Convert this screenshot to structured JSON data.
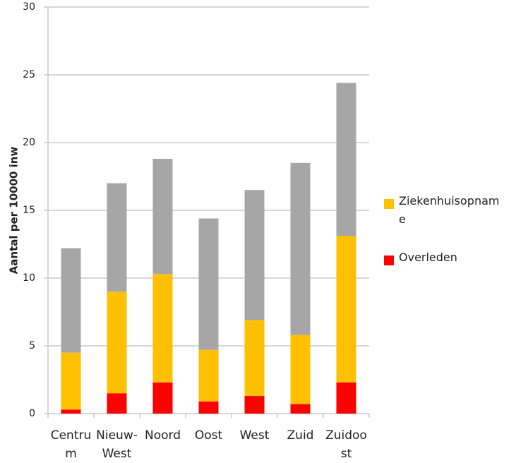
{
  "chart_data": {
    "type": "stacked_bar",
    "y_label": "Aantal per 10000 inw",
    "categories": [
      "Centrum",
      "Nieuw-West",
      "Noord",
      "Oost",
      "West",
      "Zuid",
      "Zuidoost"
    ],
    "series": [
      {
        "name": "Overleden",
        "color": "#ff0000",
        "values": [
          0.3,
          1.5,
          2.3,
          0.9,
          1.3,
          0.7,
          2.3
        ]
      },
      {
        "name": "Ziekenhuisopname",
        "color": "#ffc000",
        "values": [
          4.2,
          7.5,
          8.0,
          3.8,
          5.6,
          5.1,
          10.8
        ]
      },
      {
        "color": "#a6a6a6",
        "values": [
          7.7,
          8.0,
          8.5,
          9.7,
          9.6,
          12.7,
          11.3
        ]
      }
    ],
    "ylim": [
      0,
      30
    ],
    "yticks": [
      0,
      5,
      10,
      15,
      20,
      25,
      30
    ],
    "grid": true
  }
}
